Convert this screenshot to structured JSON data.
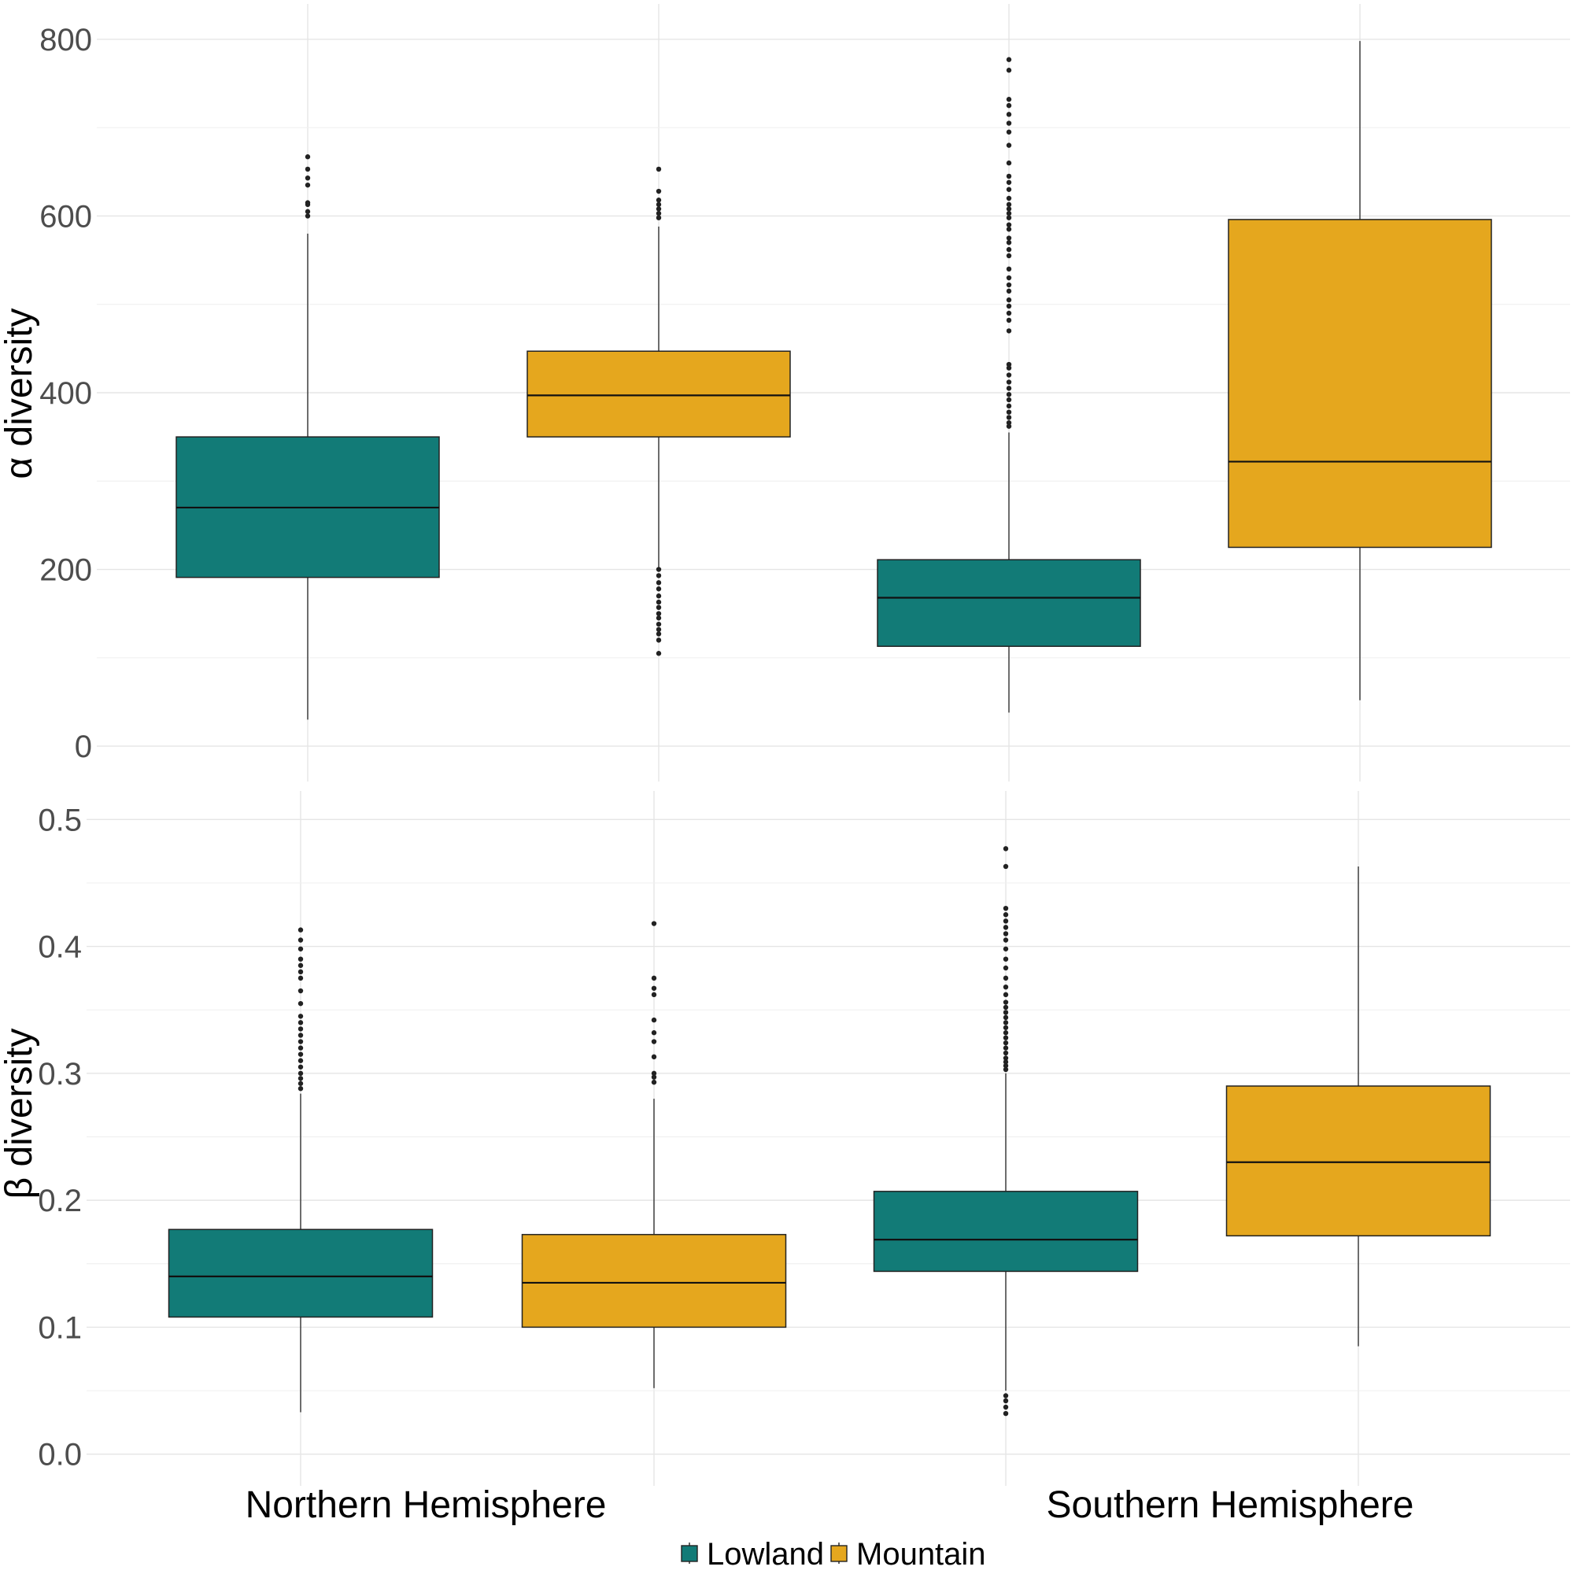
{
  "colors": {
    "Lowland": "#127b77",
    "Mountain": "#e5a71e",
    "outline": "#222222",
    "outlier": "#222222"
  },
  "chart_data": [
    {
      "type": "boxplot",
      "panel": "top",
      "ylabel": "α diversity",
      "ylim": [
        -40,
        840
      ],
      "yticks": [
        0,
        200,
        400,
        600,
        800
      ],
      "yticklabels": [
        "0",
        "200",
        "400",
        "600",
        "800"
      ],
      "categories": [
        "Northern Hemisphere",
        "Southern Hemisphere"
      ],
      "series": [
        {
          "name": "Lowland",
          "boxes": [
            {
              "category": "Northern Hemisphere",
              "whisker_low": 30,
              "q1": 191,
              "median": 270,
              "q3": 350,
              "whisker_high": 580,
              "outliers": [
                600,
                605,
                613,
                615,
                635,
                643,
                653,
                667
              ]
            },
            {
              "category": "Southern Hemisphere",
              "whisker_low": 38,
              "q1": 113,
              "median": 168,
              "q3": 211,
              "whisker_high": 355,
              "outliers": [
                362,
                366,
                372,
                378,
                385,
                392,
                398,
                405,
                412,
                420,
                428,
                432,
                470,
                482,
                490,
                498,
                505,
                515,
                522,
                530,
                540,
                555,
                562,
                570,
                575,
                585,
                590,
                598,
                603,
                608,
                613,
                620,
                630,
                638,
                645,
                660,
                680,
                695,
                705,
                715,
                725,
                732,
                765,
                777
              ]
            }
          ]
        },
        {
          "name": "Mountain",
          "boxes": [
            {
              "category": "Northern Hemisphere",
              "whisker_low": 200,
              "q1": 350,
              "median": 397,
              "q3": 447,
              "whisker_high": 588,
              "outliers": [
                105,
                120,
                127,
                132,
                138,
                145,
                150,
                157,
                163,
                170,
                178,
                185,
                193,
                200,
                598,
                603,
                608,
                613,
                618,
                628,
                653
              ]
            },
            {
              "category": "Southern Hemisphere",
              "whisker_low": 52,
              "q1": 225,
              "median": 322,
              "q3": 596,
              "whisker_high": 798,
              "outliers": []
            }
          ]
        }
      ]
    },
    {
      "type": "boxplot",
      "panel": "bottom",
      "ylabel": "β diversity",
      "ylim": [
        -0.025,
        0.5225
      ],
      "yticks": [
        0.0,
        0.1,
        0.2,
        0.3,
        0.4,
        0.5
      ],
      "yticklabels": [
        "0.0",
        "0.1",
        "0.2",
        "0.3",
        "0.4",
        "0.5"
      ],
      "categories": [
        "Northern Hemisphere",
        "Southern Hemisphere"
      ],
      "series": [
        {
          "name": "Lowland",
          "boxes": [
            {
              "category": "Northern Hemisphere",
              "whisker_low": 0.033,
              "q1": 0.108,
              "median": 0.14,
              "q3": 0.177,
              "whisker_high": 0.284,
              "outliers": [
                0.288,
                0.292,
                0.296,
                0.3,
                0.305,
                0.31,
                0.315,
                0.32,
                0.325,
                0.33,
                0.335,
                0.34,
                0.345,
                0.355,
                0.365,
                0.375,
                0.38,
                0.385,
                0.39,
                0.398,
                0.405,
                0.413
              ]
            },
            {
              "category": "Southern Hemisphere",
              "whisker_low": 0.05,
              "q1": 0.144,
              "median": 0.169,
              "q3": 0.207,
              "whisker_high": 0.3,
              "outliers": [
                0.032,
                0.037,
                0.042,
                0.046,
                0.303,
                0.306,
                0.309,
                0.312,
                0.316,
                0.32,
                0.324,
                0.328,
                0.332,
                0.336,
                0.34,
                0.344,
                0.348,
                0.352,
                0.356,
                0.362,
                0.368,
                0.375,
                0.383,
                0.39,
                0.398,
                0.405,
                0.41,
                0.415,
                0.42,
                0.425,
                0.43,
                0.463,
                0.477
              ]
            }
          ]
        },
        {
          "name": "Mountain",
          "boxes": [
            {
              "category": "Northern Hemisphere",
              "whisker_low": 0.052,
              "q1": 0.1,
              "median": 0.135,
              "q3": 0.173,
              "whisker_high": 0.28,
              "outliers": [
                0.293,
                0.297,
                0.3,
                0.313,
                0.325,
                0.332,
                0.342,
                0.362,
                0.367,
                0.375,
                0.418
              ]
            },
            {
              "category": "Southern Hemisphere",
              "whisker_low": 0.085,
              "q1": 0.172,
              "median": 0.23,
              "q3": 0.29,
              "whisker_high": 0.463,
              "outliers": []
            }
          ]
        }
      ]
    }
  ],
  "legend": {
    "items": [
      {
        "label": "Lowland",
        "key": "Lowland"
      },
      {
        "label": "Mountain",
        "key": "Mountain"
      }
    ]
  }
}
